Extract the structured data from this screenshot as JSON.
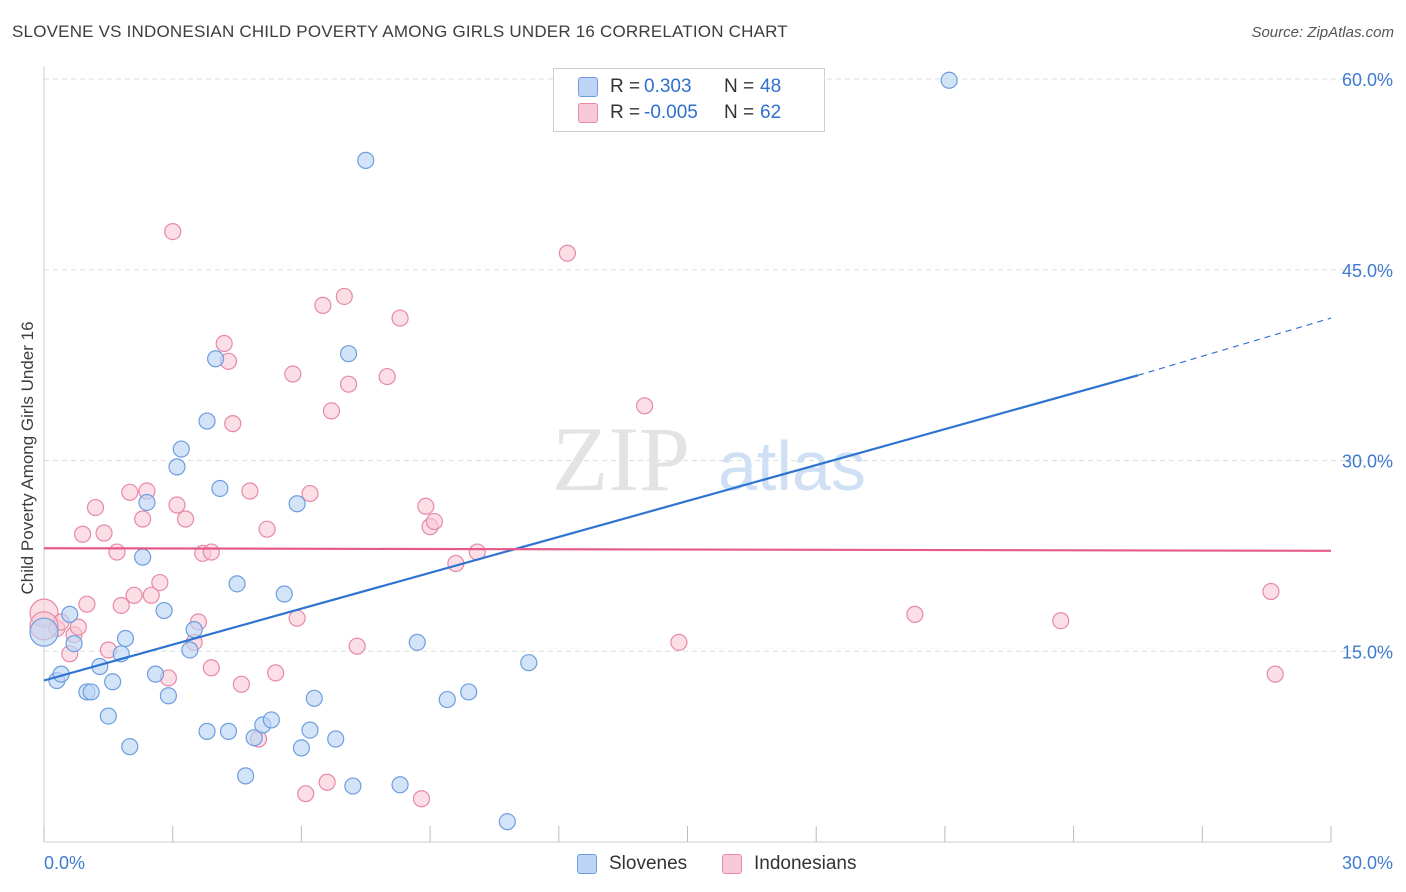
{
  "title": "SLOVENE VS INDONESIAN CHILD POVERTY AMONG GIRLS UNDER 16 CORRELATION CHART",
  "source": "Source: ZipAtlas.com",
  "watermark": {
    "zip": "ZIP",
    "atlas": "atlas"
  },
  "colors": {
    "blue_fill": "#bcd4f5",
    "blue_stroke": "#6e9ede",
    "blue_line": "#2f74d0",
    "pink_fill": "#f8c8d6",
    "pink_stroke": "#e68aa6",
    "pink_line": "#e55a8a",
    "axis_label": "#3f7bd0",
    "grid": "#dddddd"
  },
  "legend": {
    "rows": [
      {
        "r_label": "R =",
        "r_value": "0.303",
        "n_label": "N =",
        "n_value": "48",
        "color": "blue"
      },
      {
        "r_label": "R =",
        "r_value": "-0.005",
        "n_label": "N =",
        "n_value": "62",
        "color": "pink"
      }
    ]
  },
  "bottom_legend": [
    "Slovenes",
    "Indonesians"
  ],
  "chart_data": {
    "type": "scatter",
    "xlabel": "",
    "ylabel": "Child Poverty Among Girls Under 16",
    "xlim": [
      0,
      30
    ],
    "ylim": [
      0,
      60
    ],
    "x_tick_labels": [
      "0.0%",
      "30.0%"
    ],
    "y_tick_labels": [
      "15.0%",
      "30.0%",
      "45.0%",
      "60.0%"
    ],
    "y_ticks": [
      15,
      30,
      45,
      60
    ],
    "grid": true,
    "legend_position": "top-center",
    "series": [
      {
        "name": "Slovenes",
        "color": "blue",
        "trend": {
          "x0": 0,
          "y0": 12.7,
          "x1": 25.5,
          "y1": 36.7,
          "dash_to_x": 30,
          "dash_to_y": 41.2
        },
        "points": [
          [
            0.0,
            16.5
          ],
          [
            0.3,
            12.7
          ],
          [
            0.4,
            13.2
          ],
          [
            0.6,
            17.9
          ],
          [
            0.7,
            15.6
          ],
          [
            1.0,
            11.8
          ],
          [
            1.1,
            11.8
          ],
          [
            1.3,
            13.8
          ],
          [
            1.5,
            9.9
          ],
          [
            1.6,
            12.6
          ],
          [
            1.8,
            14.8
          ],
          [
            1.9,
            16.0
          ],
          [
            2.0,
            7.5
          ],
          [
            2.3,
            22.4
          ],
          [
            2.4,
            26.7
          ],
          [
            2.6,
            13.2
          ],
          [
            2.8,
            18.2
          ],
          [
            2.9,
            11.5
          ],
          [
            3.1,
            29.5
          ],
          [
            3.2,
            30.9
          ],
          [
            3.4,
            15.1
          ],
          [
            3.5,
            16.7
          ],
          [
            3.8,
            8.7
          ],
          [
            3.8,
            33.1
          ],
          [
            4.0,
            38.0
          ],
          [
            4.1,
            27.8
          ],
          [
            4.3,
            8.7
          ],
          [
            4.5,
            20.3
          ],
          [
            4.7,
            5.2
          ],
          [
            4.9,
            8.2
          ],
          [
            5.1,
            9.2
          ],
          [
            5.3,
            9.6
          ],
          [
            5.6,
            19.5
          ],
          [
            5.9,
            26.6
          ],
          [
            6.0,
            7.4
          ],
          [
            6.2,
            8.8
          ],
          [
            6.3,
            11.3
          ],
          [
            6.8,
            8.1
          ],
          [
            7.1,
            38.4
          ],
          [
            7.2,
            4.4
          ],
          [
            7.5,
            53.6
          ],
          [
            8.3,
            4.5
          ],
          [
            8.7,
            15.7
          ],
          [
            9.4,
            11.2
          ],
          [
            9.9,
            11.8
          ],
          [
            10.8,
            1.6
          ],
          [
            11.3,
            14.1
          ],
          [
            21.1,
            59.9
          ]
        ]
      },
      {
        "name": "Indonesians",
        "color": "pink",
        "trend": {
          "x0": 0,
          "y0": 23.1,
          "x1": 30,
          "y1": 22.9
        },
        "points": [
          [
            0.0,
            18.0
          ],
          [
            0.3,
            16.8
          ],
          [
            0.4,
            17.3
          ],
          [
            0.6,
            14.8
          ],
          [
            0.7,
            16.3
          ],
          [
            0.8,
            16.9
          ],
          [
            0.9,
            24.2
          ],
          [
            1.0,
            18.7
          ],
          [
            1.2,
            26.3
          ],
          [
            1.4,
            24.3
          ],
          [
            1.5,
            15.1
          ],
          [
            1.7,
            22.8
          ],
          [
            1.8,
            18.6
          ],
          [
            2.0,
            27.5
          ],
          [
            2.1,
            19.4
          ],
          [
            2.3,
            25.4
          ],
          [
            2.4,
            27.6
          ],
          [
            2.5,
            19.4
          ],
          [
            2.7,
            20.4
          ],
          [
            2.9,
            12.9
          ],
          [
            3.0,
            48.0
          ],
          [
            3.1,
            26.5
          ],
          [
            3.3,
            25.4
          ],
          [
            3.5,
            15.7
          ],
          [
            3.6,
            17.3
          ],
          [
            3.7,
            22.7
          ],
          [
            3.9,
            22.8
          ],
          [
            3.9,
            13.7
          ],
          [
            4.2,
            39.2
          ],
          [
            4.3,
            37.8
          ],
          [
            4.4,
            32.9
          ],
          [
            4.6,
            12.4
          ],
          [
            4.8,
            27.6
          ],
          [
            5.0,
            8.1
          ],
          [
            5.2,
            24.6
          ],
          [
            5.4,
            13.3
          ],
          [
            5.8,
            36.8
          ],
          [
            5.9,
            17.6
          ],
          [
            6.1,
            3.8
          ],
          [
            6.2,
            27.4
          ],
          [
            6.5,
            42.2
          ],
          [
            6.6,
            4.7
          ],
          [
            6.7,
            33.9
          ],
          [
            7.0,
            42.9
          ],
          [
            7.1,
            36.0
          ],
          [
            7.3,
            15.4
          ],
          [
            8.0,
            36.6
          ],
          [
            8.3,
            41.2
          ],
          [
            8.8,
            3.4
          ],
          [
            8.9,
            26.4
          ],
          [
            9.0,
            24.8
          ],
          [
            9.1,
            25.2
          ],
          [
            9.6,
            21.9
          ],
          [
            10.1,
            22.8
          ],
          [
            12.2,
            46.3
          ],
          [
            14.0,
            34.3
          ],
          [
            14.8,
            15.7
          ],
          [
            20.3,
            17.9
          ],
          [
            23.7,
            17.4
          ],
          [
            28.6,
            19.7
          ],
          [
            28.7,
            13.2
          ],
          [
            0.0,
            17.0
          ]
        ]
      }
    ]
  }
}
